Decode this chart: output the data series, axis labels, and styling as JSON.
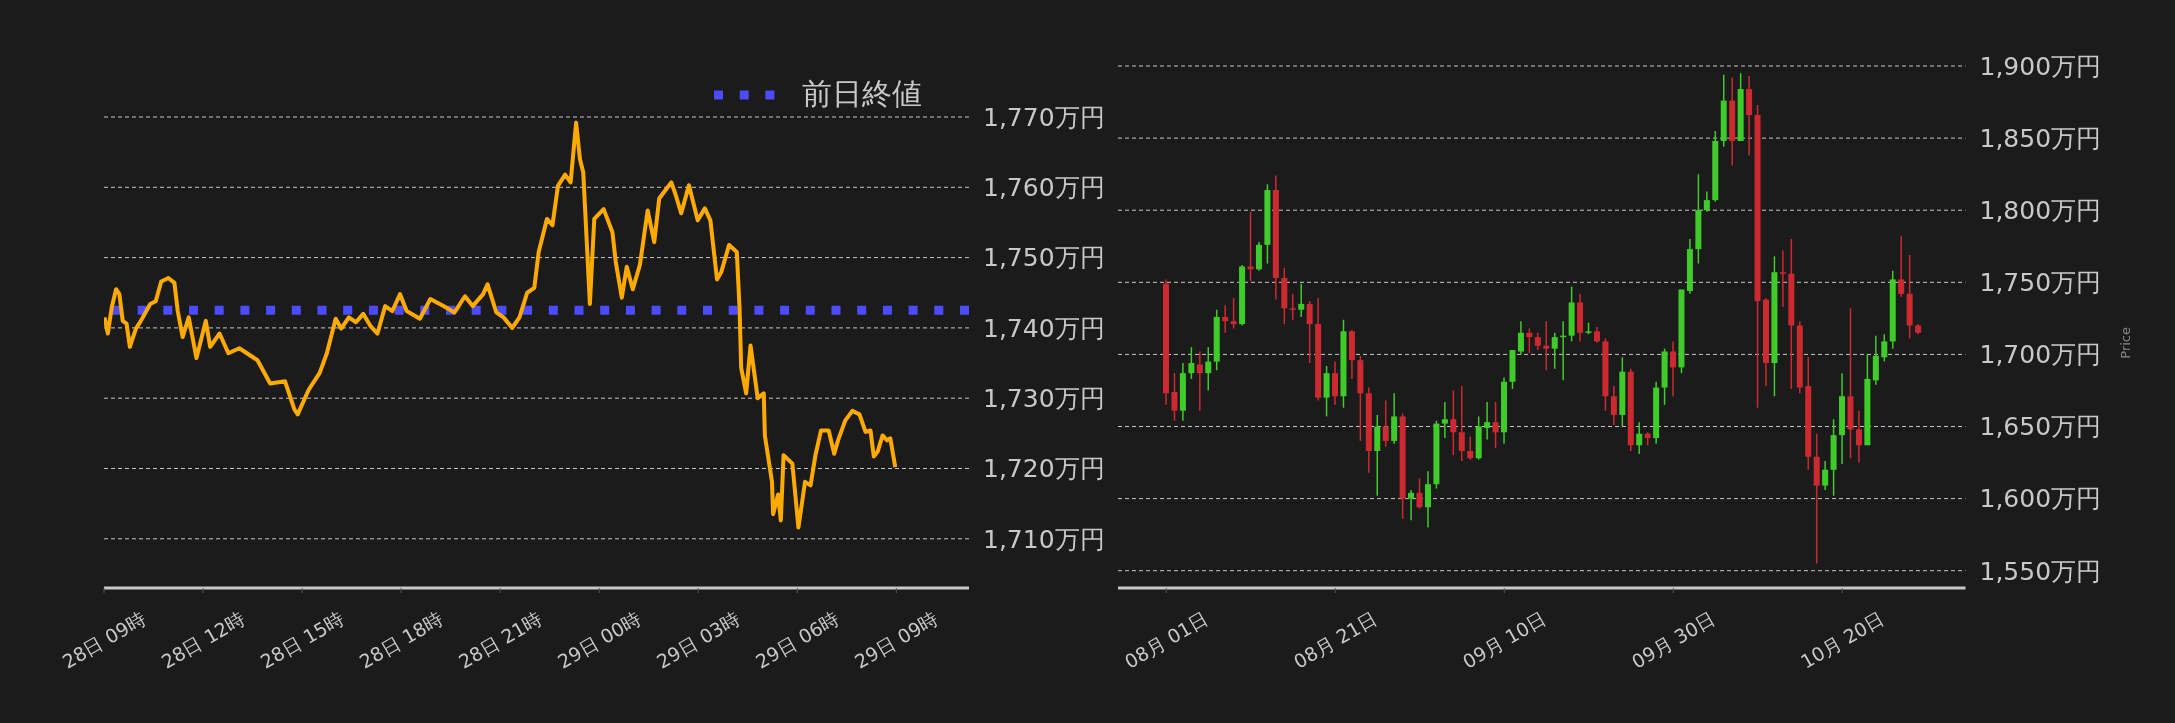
{
  "chart_data": [
    {
      "type": "line",
      "color": "#ffaa00",
      "grid": "y",
      "legend": "top right",
      "x": [
        "--10-28T09:01",
        "--10-28T09:07",
        "--10-28T09:14",
        "--10-28T09:22",
        "--10-28T09:28",
        "--10-28T09:34",
        "--10-28T09:41",
        "--10-28T09:47",
        "--10-28T09:58",
        "--10-28T10:07",
        "--10-28T10:24",
        "--10-28T10:34",
        "--10-28T10:44",
        "--10-28T10:57",
        "--10-28T11:08",
        "--10-28T11:14",
        "--10-28T11:23",
        "--10-28T11:34",
        "--10-28T11:48",
        "--10-28T12:05",
        "--10-28T12:13",
        "--10-28T12:30",
        "--10-28T12:46",
        "--10-28T13:06",
        "--10-28T13:39",
        "--10-28T14:02",
        "--10-28T14:29",
        "--10-28T14:46",
        "--10-28T14:52",
        "--10-28T15:12",
        "--10-28T15:32",
        "--10-28T15:45",
        "--10-28T16:01",
        "--10-28T16:11",
        "--10-28T16:25",
        "--10-28T16:38",
        "--10-28T16:51",
        "--10-28T17:04",
        "--10-28T17:17",
        "--10-28T17:31",
        "--10-28T17:44",
        "--10-28T17:58",
        "--10-28T18:10",
        "--10-28T18:34",
        "--10-28T18:53",
        "--10-28T19:17",
        "--10-28T19:37",
        "--10-28T19:56",
        "--10-28T20:10",
        "--10-28T20:29",
        "--10-28T20:37",
        "--10-28T20:53",
        "--10-28T21:06",
        "--10-28T21:22",
        "--10-28T21:35",
        "--10-28T21:49",
        "--10-28T22:02",
        "--10-28T22:10",
        "--10-28T22:25",
        "--10-28T22:35",
        "--10-28T22:45",
        "--10-28T22:58",
        "--10-28T23:08",
        "--10-28T23:18",
        "--10-28T23:25",
        "--10-28T23:31",
        "--10-28T23:43",
        "--10-28T23:51",
        "--10-29T00:08",
        "--10-29T00:24",
        "--10-29T00:30",
        "--10-29T00:41",
        "--10-29T00:50",
        "--10-29T01:01",
        "--10-29T01:14",
        "--10-29T01:28",
        "--10-29T01:40",
        "--10-29T01:49",
        "--10-29T02:11",
        "--10-29T02:19",
        "--10-29T02:29",
        "--10-29T02:43",
        "--10-29T02:59",
        "--10-29T03:12",
        "--10-29T03:22",
        "--10-29T03:34",
        "--10-29T03:42",
        "--10-29T03:56",
        "--10-29T04:10",
        "--10-29T04:15",
        "--10-29T04:18",
        "--10-29T04:27",
        "--10-29T04:35",
        "--10-29T04:48",
        "--10-29T04:59",
        "--10-29T05:01",
        "--10-29T05:14",
        "--10-29T05:16",
        "--10-29T05:25",
        "--10-29T05:30",
        "--10-29T05:35",
        "--10-29T05:51",
        "--10-29T06:02",
        "--10-29T06:14",
        "--10-29T06:24",
        "--10-29T06:33",
        "--10-29T06:43",
        "--10-29T06:57",
        "--10-29T07:07",
        "--10-29T07:14",
        "--10-29T07:27",
        "--10-29T07:40",
        "--10-29T07:53",
        "--10-29T08:04",
        "--10-29T08:13",
        "--10-29T08:19",
        "--10-29T08:26",
        "--10-29T08:35",
        "--10-29T08:43",
        "--10-29T08:49",
        "--10-29T08:58"
      ],
      "values": [
        1741.5,
        1739.2,
        1742.9,
        1745.5,
        1744.8,
        1741.0,
        1740.6,
        1737.3,
        1739.9,
        1741.0,
        1743.4,
        1743.8,
        1746.6,
        1747.1,
        1746.4,
        1742.4,
        1738.7,
        1741.5,
        1735.7,
        1741.0,
        1737.3,
        1739.2,
        1736.4,
        1737.1,
        1735.4,
        1732.1,
        1732.4,
        1728.4,
        1727.7,
        1731.2,
        1733.6,
        1736.4,
        1741.3,
        1739.9,
        1741.5,
        1740.8,
        1742.0,
        1740.3,
        1739.2,
        1743.1,
        1742.4,
        1744.8,
        1742.4,
        1741.3,
        1744.1,
        1743.1,
        1742.2,
        1744.5,
        1743.1,
        1744.8,
        1746.2,
        1742.2,
        1741.5,
        1740.0,
        1741.5,
        1745.0,
        1745.7,
        1750.8,
        1755.5,
        1754.6,
        1760.2,
        1761.8,
        1760.7,
        1769.2,
        1764.0,
        1762.1,
        1743.4,
        1755.5,
        1756.9,
        1753.6,
        1749.4,
        1744.3,
        1748.7,
        1745.5,
        1749.0,
        1756.7,
        1752.2,
        1758.4,
        1760.7,
        1758.9,
        1756.3,
        1760.3,
        1755.3,
        1757.0,
        1755.3,
        1746.9,
        1748.0,
        1751.8,
        1750.8,
        1742.9,
        1734.3,
        1730.7,
        1737.5,
        1730.0,
        1730.7,
        1724.7,
        1718.1,
        1713.5,
        1716.3,
        1712.6,
        1721.9,
        1720.7,
        1711.6,
        1718.1,
        1717.6,
        1721.9,
        1725.4,
        1725.4,
        1722.1,
        1724.0,
        1726.8,
        1728.2,
        1727.7,
        1725.2,
        1725.4,
        1721.7,
        1722.4,
        1724.7,
        1724.0,
        1724.3,
        1720.2
      ],
      "xlim": [
        "--10-28T09:00",
        "--10-29T11:12"
      ],
      "xticks": [
        {
          "value": "--10-28T09:00",
          "label": "28日 09時"
        },
        {
          "value": "--10-28T12:00",
          "label": "28日 12時"
        },
        {
          "value": "--10-28T15:00",
          "label": "28日 15時"
        },
        {
          "value": "--10-28T18:00",
          "label": "28日 18時"
        },
        {
          "value": "--10-28T21:00",
          "label": "28日 21時"
        },
        {
          "value": "--10-29T00:00",
          "label": "29日 00時"
        },
        {
          "value": "--10-29T03:00",
          "label": "29日 03時"
        },
        {
          "value": "--10-29T06:00",
          "label": "29日 06時"
        },
        {
          "value": "--10-29T09:00",
          "label": "29日 09時"
        }
      ],
      "ylim": [
        1703,
        1770
      ],
      "yticks": [
        {
          "value": 1710,
          "label": "1,710万円"
        },
        {
          "value": 1720,
          "label": "1,720万円"
        },
        {
          "value": 1730,
          "label": "1,730万円"
        },
        {
          "value": 1740,
          "label": "1,740万円"
        },
        {
          "value": 1750,
          "label": "1,750万円"
        },
        {
          "value": 1760,
          "label": "1,760万円"
        },
        {
          "value": 1770,
          "label": "1,770万円"
        }
      ],
      "ref_lines": [
        {
          "axis": "y",
          "value": 1742.5,
          "label": "前日終値",
          "color": "#4b4bff",
          "line_style": "dotted"
        }
      ]
    },
    {
      "type": "candlestick",
      "grid": "y",
      "ylabel": "Price",
      "x": [
        "--08-01",
        "--08-02",
        "--08-03",
        "--08-04",
        "--08-05",
        "--08-06",
        "--08-07",
        "--08-08",
        "--08-09",
        "--08-10",
        "--08-11",
        "--08-12",
        "--08-13",
        "--08-14",
        "--08-15",
        "--08-16",
        "--08-17",
        "--08-18",
        "--08-19",
        "--08-20",
        "--08-21",
        "--08-22",
        "--08-23",
        "--08-24",
        "--08-25",
        "--08-26",
        "--08-27",
        "--08-28",
        "--08-29",
        "--08-30",
        "--08-31",
        "--09-01",
        "--09-02",
        "--09-03",
        "--09-04",
        "--09-05",
        "--09-06",
        "--09-07",
        "--09-08",
        "--09-09",
        "--09-10",
        "--09-11",
        "--09-12",
        "--09-13",
        "--09-14",
        "--09-15",
        "--09-16",
        "--09-17",
        "--09-18",
        "--09-19",
        "--09-20",
        "--09-21",
        "--09-22",
        "--09-23",
        "--09-24",
        "--09-25",
        "--09-26",
        "--09-27",
        "--09-28",
        "--09-29",
        "--09-30",
        "--10-01",
        "--10-02",
        "--10-03",
        "--10-04",
        "--10-05",
        "--10-06",
        "--10-07",
        "--10-08",
        "--10-09",
        "--10-10",
        "--10-11",
        "--10-12",
        "--10-13",
        "--10-14",
        "--10-15",
        "--10-16",
        "--10-17",
        "--10-18",
        "--10-19",
        "--10-20",
        "--10-21",
        "--10-22",
        "--10-23",
        "--10-24",
        "--10-25",
        "--10-26",
        "--10-27",
        "--10-28",
        "--10-29"
      ],
      "ohlc": [
        [
          1749,
          1752,
          1665,
          1673
        ],
        [
          1674,
          1687,
          1654,
          1661
        ],
        [
          1661,
          1694,
          1654,
          1687
        ],
        [
          1687,
          1705,
          1683,
          1694
        ],
        [
          1693,
          1702,
          1661,
          1687
        ],
        [
          1687,
          1705,
          1675,
          1695
        ],
        [
          1695,
          1731,
          1689,
          1726
        ],
        [
          1726,
          1734,
          1715,
          1723
        ],
        [
          1723,
          1739,
          1718,
          1721
        ],
        [
          1721,
          1762,
          1720,
          1761
        ],
        [
          1761,
          1799,
          1751,
          1759
        ],
        [
          1759,
          1778,
          1758,
          1776
        ],
        [
          1776,
          1818,
          1763,
          1814
        ],
        [
          1814,
          1824,
          1738,
          1753
        ],
        [
          1753,
          1760,
          1721,
          1732
        ],
        [
          1732,
          1742,
          1724,
          1731
        ],
        [
          1731,
          1749,
          1726,
          1735
        ],
        [
          1735,
          1737,
          1694,
          1721
        ],
        [
          1721,
          1739,
          1668,
          1670
        ],
        [
          1670,
          1692,
          1657,
          1687
        ],
        [
          1687,
          1695,
          1665,
          1671
        ],
        [
          1671,
          1724,
          1663,
          1716
        ],
        [
          1716,
          1717,
          1683,
          1696
        ],
        [
          1696,
          1699,
          1640,
          1673
        ],
        [
          1673,
          1677,
          1618,
          1633
        ],
        [
          1633,
          1658,
          1602,
          1650
        ],
        [
          1650,
          1668,
          1636,
          1640
        ],
        [
          1640,
          1673,
          1638,
          1657
        ],
        [
          1657,
          1659,
          1586,
          1600
        ],
        [
          1600,
          1606,
          1585,
          1604
        ],
        [
          1604,
          1614,
          1593,
          1594
        ],
        [
          1594,
          1619,
          1580,
          1610
        ],
        [
          1610,
          1654,
          1607,
          1652
        ],
        [
          1652,
          1667,
          1642,
          1655
        ],
        [
          1655,
          1675,
          1630,
          1646
        ],
        [
          1646,
          1678,
          1626,
          1633
        ],
        [
          1633,
          1643,
          1627,
          1628
        ],
        [
          1628,
          1657,
          1627,
          1650
        ],
        [
          1649,
          1667,
          1641,
          1653
        ],
        [
          1653,
          1667,
          1635,
          1646
        ],
        [
          1646,
          1684,
          1638,
          1681
        ],
        [
          1681,
          1703,
          1676,
          1703
        ],
        [
          1702,
          1723,
          1700,
          1715
        ],
        [
          1715,
          1718,
          1701,
          1712
        ],
        [
          1712,
          1715,
          1703,
          1706
        ],
        [
          1706,
          1723,
          1689,
          1704
        ],
        [
          1704,
          1715,
          1690,
          1712
        ],
        [
          1712,
          1723,
          1682,
          1713
        ],
        [
          1713,
          1747,
          1709,
          1736
        ],
        [
          1736,
          1742,
          1709,
          1715
        ],
        [
          1715,
          1722,
          1714,
          1716
        ],
        [
          1716,
          1719,
          1708,
          1709
        ],
        [
          1709,
          1711,
          1661,
          1671
        ],
        [
          1671,
          1678,
          1651,
          1658
        ],
        [
          1658,
          1698,
          1650,
          1688
        ],
        [
          1688,
          1690,
          1633,
          1637
        ],
        [
          1637,
          1653,
          1631,
          1645
        ],
        [
          1645,
          1646,
          1637,
          1642
        ],
        [
          1642,
          1681,
          1638,
          1677
        ],
        [
          1677,
          1704,
          1665,
          1702
        ],
        [
          1702,
          1709,
          1671,
          1691
        ],
        [
          1691,
          1745,
          1687,
          1745
        ],
        [
          1744,
          1780,
          1742,
          1773
        ],
        [
          1773,
          1825,
          1763,
          1800
        ],
        [
          1800,
          1813,
          1799,
          1807
        ],
        [
          1807,
          1855,
          1806,
          1848
        ],
        [
          1848,
          1894,
          1844,
          1876
        ],
        [
          1876,
          1892,
          1831,
          1848
        ],
        [
          1848,
          1895,
          1848,
          1884
        ],
        [
          1884,
          1893,
          1838,
          1866
        ],
        [
          1866,
          1873,
          1663,
          1737
        ],
        [
          1738,
          1739,
          1678,
          1694
        ],
        [
          1694,
          1768,
          1671,
          1757
        ],
        [
          1757,
          1772,
          1733,
          1756
        ],
        [
          1756,
          1780,
          1676,
          1720
        ],
        [
          1720,
          1723,
          1673,
          1677
        ],
        [
          1678,
          1698,
          1620,
          1629
        ],
        [
          1629,
          1645,
          1555,
          1609
        ],
        [
          1609,
          1626,
          1606,
          1620
        ],
        [
          1620,
          1655,
          1602,
          1644
        ],
        [
          1644,
          1687,
          1624,
          1671
        ],
        [
          1671,
          1732,
          1628,
          1648
        ],
        [
          1648,
          1661,
          1625,
          1637
        ],
        [
          1637,
          1700,
          1637,
          1683
        ],
        [
          1682,
          1713,
          1679,
          1699
        ],
        [
          1698,
          1714,
          1695,
          1709
        ],
        [
          1709,
          1758,
          1704,
          1752
        ],
        [
          1752,
          1782,
          1740,
          1742
        ],
        [
          1742,
          1769,
          1711,
          1720
        ],
        [
          1720,
          1721,
          1714,
          1715
        ]
      ],
      "colors": [
        "#cc2a30",
        "#cc2a30",
        "#3fcc2a",
        "#3fcc2a",
        "#cc2a30",
        "#3fcc2a",
        "#3fcc2a",
        "#cc2a30",
        "#cc2a30",
        "#3fcc2a",
        "#cc2a30",
        "#3fcc2a",
        "#3fcc2a",
        "#cc2a30",
        "#cc2a30",
        "#cc2a30",
        "#3fcc2a",
        "#cc2a30",
        "#cc2a30",
        "#3fcc2a",
        "#cc2a30",
        "#3fcc2a",
        "#cc2a30",
        "#cc2a30",
        "#cc2a30",
        "#3fcc2a",
        "#cc2a30",
        "#3fcc2a",
        "#cc2a30",
        "#3fcc2a",
        "#cc2a30",
        "#3fcc2a",
        "#3fcc2a",
        "#3fcc2a",
        "#cc2a30",
        "#cc2a30",
        "#cc2a30",
        "#3fcc2a",
        "#3fcc2a",
        "#cc2a30",
        "#3fcc2a",
        "#3fcc2a",
        "#3fcc2a",
        "#cc2a30",
        "#cc2a30",
        "#cc2a30",
        "#3fcc2a",
        "#3fcc2a",
        "#3fcc2a",
        "#cc2a30",
        "#3fcc2a",
        "#cc2a30",
        "#cc2a30",
        "#cc2a30",
        "#3fcc2a",
        "#cc2a30",
        "#3fcc2a",
        "#cc2a30",
        "#3fcc2a",
        "#3fcc2a",
        "#cc2a30",
        "#3fcc2a",
        "#3fcc2a",
        "#3fcc2a",
        "#3fcc2a",
        "#3fcc2a",
        "#3fcc2a",
        "#cc2a30",
        "#3fcc2a",
        "#cc2a30",
        "#cc2a30",
        "#cc2a30",
        "#3fcc2a",
        "#cc2a30",
        "#cc2a30",
        "#cc2a30",
        "#cc2a30",
        "#cc2a30",
        "#3fcc2a",
        "#3fcc2a",
        "#3fcc2a",
        "#cc2a30",
        "#cc2a30",
        "#3fcc2a",
        "#3fcc2a",
        "#3fcc2a",
        "#3fcc2a",
        "#cc2a30",
        "#cc2a30",
        "#cc2a30"
      ],
      "xlim": [
        "--07-26T07:00",
        "--11-03T14:00"
      ],
      "xticks": [
        {
          "value": "--08-01",
          "label": "08月 01日"
        },
        {
          "value": "--08-21",
          "label": "08月 21日"
        },
        {
          "value": "--09-10",
          "label": "09月 10日"
        },
        {
          "value": "--09-30",
          "label": "09月 30日"
        },
        {
          "value": "--10-20",
          "label": "10月 20日"
        }
      ],
      "ylim": [
        1538,
        1900
      ],
      "yticks": [
        {
          "value": 1550,
          "label": "1,550万円"
        },
        {
          "value": 1600,
          "label": "1,600万円"
        },
        {
          "value": 1650,
          "label": "1,650万円"
        },
        {
          "value": 1700,
          "label": "1,700万円"
        },
        {
          "value": 1750,
          "label": "1,750万円"
        },
        {
          "value": 1800,
          "label": "1,800万円"
        },
        {
          "value": 1850,
          "label": "1,850万円"
        },
        {
          "value": 1900,
          "label": "1,900万円"
        }
      ]
    }
  ]
}
